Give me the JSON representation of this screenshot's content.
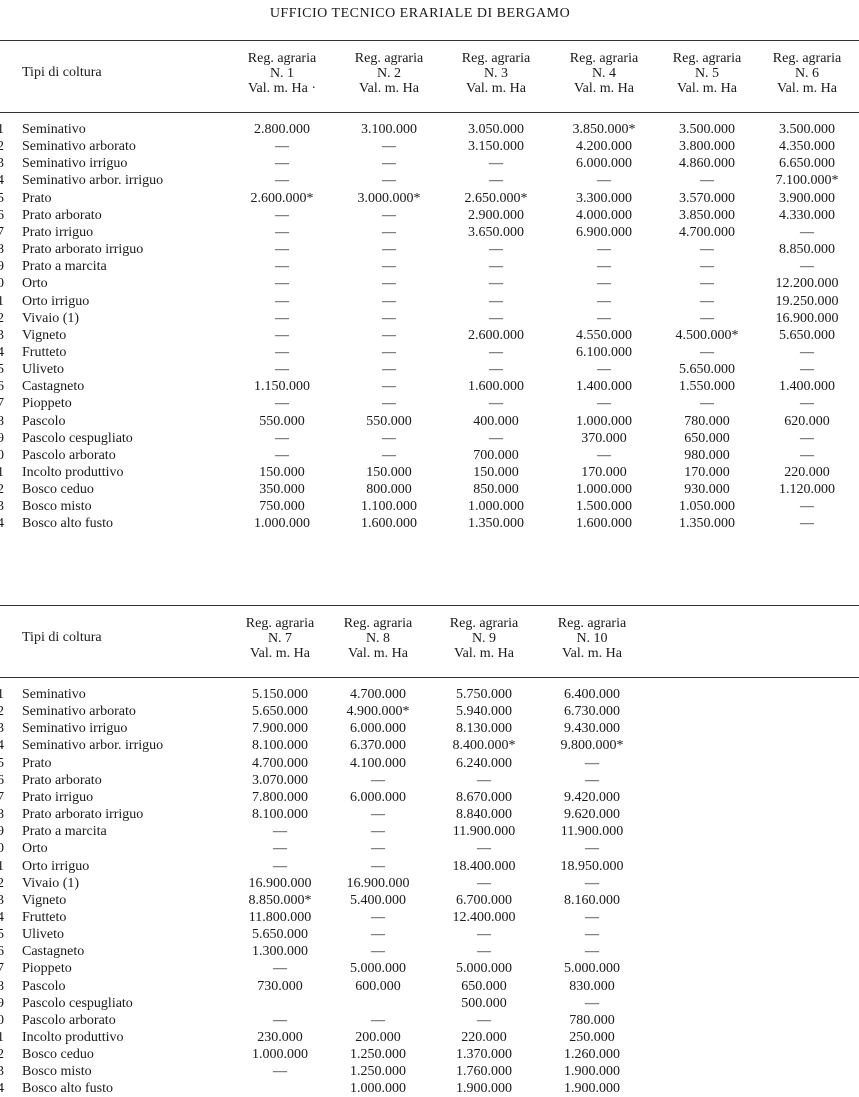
{
  "title": "UFFICIO TECNICO ERARIALE DI BERGAMO",
  "tables": [
    {
      "header": {
        "label": "Tipi di coltura",
        "columns": [
          [
            "Reg. agraria",
            "N. 1",
            "Val. m. Ha ·"
          ],
          [
            "Reg. agraria",
            "N. 2",
            "Val. m. Ha"
          ],
          [
            "Reg. agraria",
            "N. 3",
            "Val. m. Ha"
          ],
          [
            "Reg. agraria",
            "N. 4",
            "Val. m. Ha"
          ],
          [
            "Reg. agraria",
            "N. 5",
            "Val. m. Ha"
          ],
          [
            "Reg. agraria",
            "N. 6",
            "Val. m. Ha"
          ]
        ]
      },
      "rows": [
        {
          "num": "1",
          "label": "Seminativo",
          "values": [
            "2.800.000",
            "3.100.000",
            "3.050.000",
            "3.850.000*",
            "3.500.000",
            "3.500.000"
          ]
        },
        {
          "num": "2",
          "label": "Seminativo arborato",
          "values": [
            "—",
            "—",
            "3.150.000",
            "4.200.000",
            "3.800.000",
            "4.350.000"
          ]
        },
        {
          "num": "3",
          "label": "Seminativo irriguo",
          "values": [
            "—",
            "—",
            "—",
            "6.000.000",
            "4.860.000",
            "6.650.000"
          ]
        },
        {
          "num": "4",
          "label": "Seminativo arbor. irriguo",
          "values": [
            "—",
            "—",
            "—",
            "—",
            "—",
            "7.100.000*"
          ]
        },
        {
          "num": "5",
          "label": "Prato",
          "values": [
            "2.600.000*",
            "3.000.000*",
            "2.650.000*",
            "3.300.000",
            "3.570.000",
            "3.900.000"
          ]
        },
        {
          "num": "6",
          "label": "Prato arborato",
          "values": [
            "—",
            "—",
            "2.900.000",
            "4.000.000",
            "3.850.000",
            "4.330.000"
          ]
        },
        {
          "num": "7",
          "label": "Prato irriguo",
          "values": [
            "—",
            "—",
            "3.650.000",
            "6.900.000",
            "4.700.000",
            "—"
          ]
        },
        {
          "num": "8",
          "label": "Prato arborato irriguo",
          "values": [
            "—",
            "—",
            "—",
            "—",
            "—",
            "8.850.000"
          ]
        },
        {
          "num": "9",
          "label": "Prato a marcita",
          "values": [
            "—",
            "—",
            "—",
            "—",
            "—",
            "—"
          ]
        },
        {
          "num": "0",
          "label": "Orto",
          "values": [
            "—",
            "—",
            "—",
            "—",
            "—",
            "12.200.000"
          ]
        },
        {
          "num": "1",
          "label": "Orto irriguo",
          "values": [
            "—",
            "—",
            "—",
            "—",
            "—",
            "19.250.000"
          ]
        },
        {
          "num": "2",
          "label": "Vivaio (1)",
          "values": [
            "—",
            "—",
            "—",
            "—",
            "—",
            "16.900.000"
          ]
        },
        {
          "num": "3",
          "label": "Vigneto",
          "values": [
            "—",
            "—",
            "2.600.000",
            "4.550.000",
            "4.500.000*",
            "5.650.000"
          ]
        },
        {
          "num": "4",
          "label": "Frutteto",
          "values": [
            "—",
            "—",
            "—",
            "6.100.000",
            "—",
            "—"
          ]
        },
        {
          "num": "5",
          "label": "Uliveto",
          "values": [
            "—",
            "—",
            "—",
            "—",
            "5.650.000",
            "—"
          ]
        },
        {
          "num": "6",
          "label": "Castagneto",
          "values": [
            "1.150.000",
            "—",
            "1.600.000",
            "1.400.000",
            "1.550.000",
            "1.400.000"
          ]
        },
        {
          "num": "7",
          "label": "Pioppeto",
          "values": [
            "—",
            "—",
            "—",
            "—",
            "—",
            "—"
          ]
        },
        {
          "num": "8",
          "label": "Pascolo",
          "values": [
            "550.000",
            "550.000",
            "400.000",
            "1.000.000",
            "780.000",
            "620.000"
          ]
        },
        {
          "num": "9",
          "label": "Pascolo cespugliato",
          "values": [
            "—",
            "—",
            "—",
            "370.000",
            "650.000",
            "—"
          ]
        },
        {
          "num": "0",
          "label": "Pascolo arborato",
          "values": [
            "—",
            "—",
            "700.000",
            "—",
            "980.000",
            "—"
          ]
        },
        {
          "num": "1",
          "label": "Incolto produttivo",
          "values": [
            "150.000",
            "150.000",
            "150.000",
            "170.000",
            "170.000",
            "220.000"
          ]
        },
        {
          "num": "2",
          "label": "Bosco ceduo",
          "values": [
            "350.000",
            "800.000",
            "850.000",
            "1.000.000",
            "930.000",
            "1.120.000"
          ]
        },
        {
          "num": "3",
          "label": "Bosco misto",
          "values": [
            "750.000",
            "1.100.000",
            "1.000.000",
            "1.500.000",
            "1.050.000",
            "—"
          ]
        },
        {
          "num": "4",
          "label": "Bosco alto fusto",
          "values": [
            "1.000.000",
            "1.600.000",
            "1.350.000",
            "1.600.000",
            "1.350.000",
            "—"
          ]
        }
      ]
    },
    {
      "header": {
        "label": "Tipi di coltura",
        "columns": [
          [
            "Reg. agraria",
            "N. 7",
            "Val. m. Ha"
          ],
          [
            "Reg. agraria",
            "N. 8",
            "Val. m. Ha"
          ],
          [
            "Reg. agraria",
            "N. 9",
            "Val. m. Ha"
          ],
          [
            "Reg. agraria",
            "N. 10",
            "Val. m. Ha"
          ]
        ]
      },
      "rows": [
        {
          "num": "1",
          "label": "Seminativo",
          "values": [
            "5.150.000",
            "4.700.000",
            "5.750.000",
            "6.400.000"
          ]
        },
        {
          "num": "2",
          "label": "Seminativo arborato",
          "values": [
            "5.650.000",
            "4.900.000*",
            "5.940.000",
            "6.730.000"
          ]
        },
        {
          "num": "3",
          "label": "Seminativo irriguo",
          "values": [
            "7.900.000",
            "6.000.000",
            "8.130.000",
            "9.430.000"
          ]
        },
        {
          "num": "4",
          "label": "Seminativo arbor. irriguo",
          "values": [
            "8.100.000",
            "6.370.000",
            "8.400.000*",
            "9.800.000*"
          ]
        },
        {
          "num": "5",
          "label": "Prato",
          "values": [
            "4.700.000",
            "4.100.000",
            "6.240.000",
            "—"
          ]
        },
        {
          "num": "6",
          "label": "Prato arborato",
          "values": [
            "3.070.000",
            "—",
            "—",
            "—"
          ]
        },
        {
          "num": "7",
          "label": "Prato irriguo",
          "values": [
            "7.800.000",
            "6.000.000",
            "8.670.000",
            "9.420.000"
          ]
        },
        {
          "num": "8",
          "label": "Prato arborato irriguo",
          "values": [
            "8.100.000",
            "—",
            "8.840.000",
            "9.620.000"
          ]
        },
        {
          "num": "9",
          "label": "Prato a marcita",
          "values": [
            "—",
            "—",
            "11.900.000",
            "11.900.000"
          ]
        },
        {
          "num": "0",
          "label": "Orto",
          "values": [
            "—",
            "—",
            "—",
            "—"
          ]
        },
        {
          "num": "1",
          "label": "Orto irriguo",
          "values": [
            "—",
            "—",
            "18.400.000",
            "18.950.000"
          ]
        },
        {
          "num": "2",
          "label": "Vivaio (1)",
          "values": [
            "16.900.000",
            "16.900.000",
            "—",
            "—"
          ]
        },
        {
          "num": "3",
          "label": "Vigneto",
          "values": [
            "8.850.000*",
            "5.400.000",
            "6.700.000",
            "8.160.000"
          ]
        },
        {
          "num": "4",
          "label": "Frutteto",
          "values": [
            "11.800.000",
            "—",
            "12.400.000",
            "—"
          ]
        },
        {
          "num": "5",
          "label": "Uliveto",
          "values": [
            "5.650.000",
            "—",
            "—",
            "—"
          ]
        },
        {
          "num": "6",
          "label": "Castagneto",
          "values": [
            "1.300.000",
            "—",
            "—",
            "—"
          ]
        },
        {
          "num": "7",
          "label": "Pioppeto",
          "values": [
            "—",
            "5.000.000",
            "5.000.000",
            "5.000.000"
          ]
        },
        {
          "num": "8",
          "label": "Pascolo",
          "values": [
            "730.000",
            "600.000",
            "650.000",
            "830.000"
          ]
        },
        {
          "num": "9",
          "label": "Pascolo cespugliato",
          "values": [
            null,
            null,
            "500.000",
            "—"
          ]
        },
        {
          "num": "0",
          "label": "Pascolo arborato",
          "values": [
            "—",
            "—",
            "—",
            "780.000"
          ]
        },
        {
          "num": "1",
          "label": "Incolto produttivo",
          "values": [
            "230.000",
            "200.000",
            "220.000",
            "250.000"
          ]
        },
        {
          "num": "2",
          "label": "Bosco ceduo",
          "values": [
            "1.000.000",
            "1.250.000",
            "1.370.000",
            "1.260.000"
          ]
        },
        {
          "num": "3",
          "label": "Bosco misto",
          "values": [
            "—",
            "1.250.000",
            "1.760.000",
            "1.900.000"
          ]
        },
        {
          "num": "4",
          "label": "Bosco alto fusto",
          "values": [
            null,
            "1.000.000",
            "1.900.000",
            "1.900.000"
          ]
        }
      ]
    }
  ]
}
